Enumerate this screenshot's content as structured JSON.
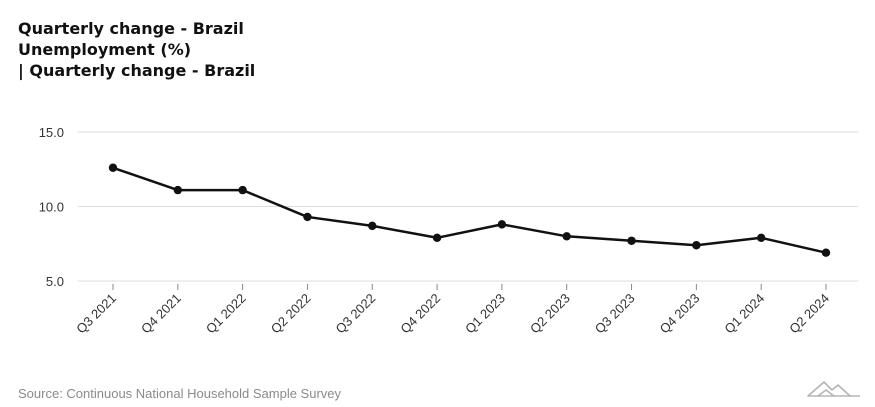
{
  "title_lines": [
    "Quarterly change - Brazil",
    "Unemployment (%)",
    "| Quarterly change - Brazil"
  ],
  "source": "Source: Continuous National Household Sample Survey",
  "colors": {
    "line": "#111111",
    "grid": "#dddddd",
    "tick_text": "#333333",
    "source": "#8a8a8a"
  },
  "chart_data": {
    "type": "line",
    "title": "Quarterly change - Brazil Unemployment (%) | Quarterly change - Brazil",
    "xlabel": "",
    "ylabel": "",
    "categories": [
      "Q3 2021",
      "Q4 2021",
      "Q1 2022",
      "Q2 2022",
      "Q3 2022",
      "Q4 2022",
      "Q1 2023",
      "Q2 2023",
      "Q3 2023",
      "Q4 2023",
      "Q1 2024",
      "Q2 2024"
    ],
    "series": [
      {
        "name": "Unemployment (%)",
        "values": [
          12.6,
          11.1,
          11.1,
          9.3,
          8.7,
          7.9,
          8.8,
          8.0,
          7.7,
          7.4,
          7.9,
          6.9
        ]
      }
    ],
    "yticks": [
      "5.0",
      "10.0",
      "15.0"
    ],
    "ylim": [
      5,
      15
    ],
    "grid": true
  }
}
